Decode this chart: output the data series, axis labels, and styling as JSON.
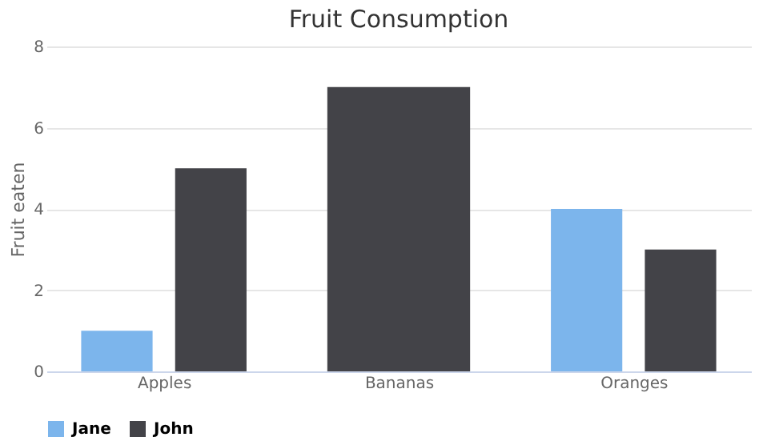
{
  "chart_data": {
    "type": "bar",
    "title": "Fruit Consumption",
    "ylabel": "Fruit eaten",
    "categories": [
      "Apples",
      "Bananas",
      "Oranges"
    ],
    "series": [
      {
        "name": "Jane",
        "color": "#7cb5ec",
        "values": [
          1,
          null,
          4
        ]
      },
      {
        "name": "John",
        "color": "#434348",
        "values": [
          5,
          7,
          3
        ]
      }
    ],
    "ylim": [
      0,
      8
    ],
    "yticks": [
      0,
      2,
      4,
      6,
      8
    ],
    "grid": "y",
    "legend": "bottom"
  }
}
